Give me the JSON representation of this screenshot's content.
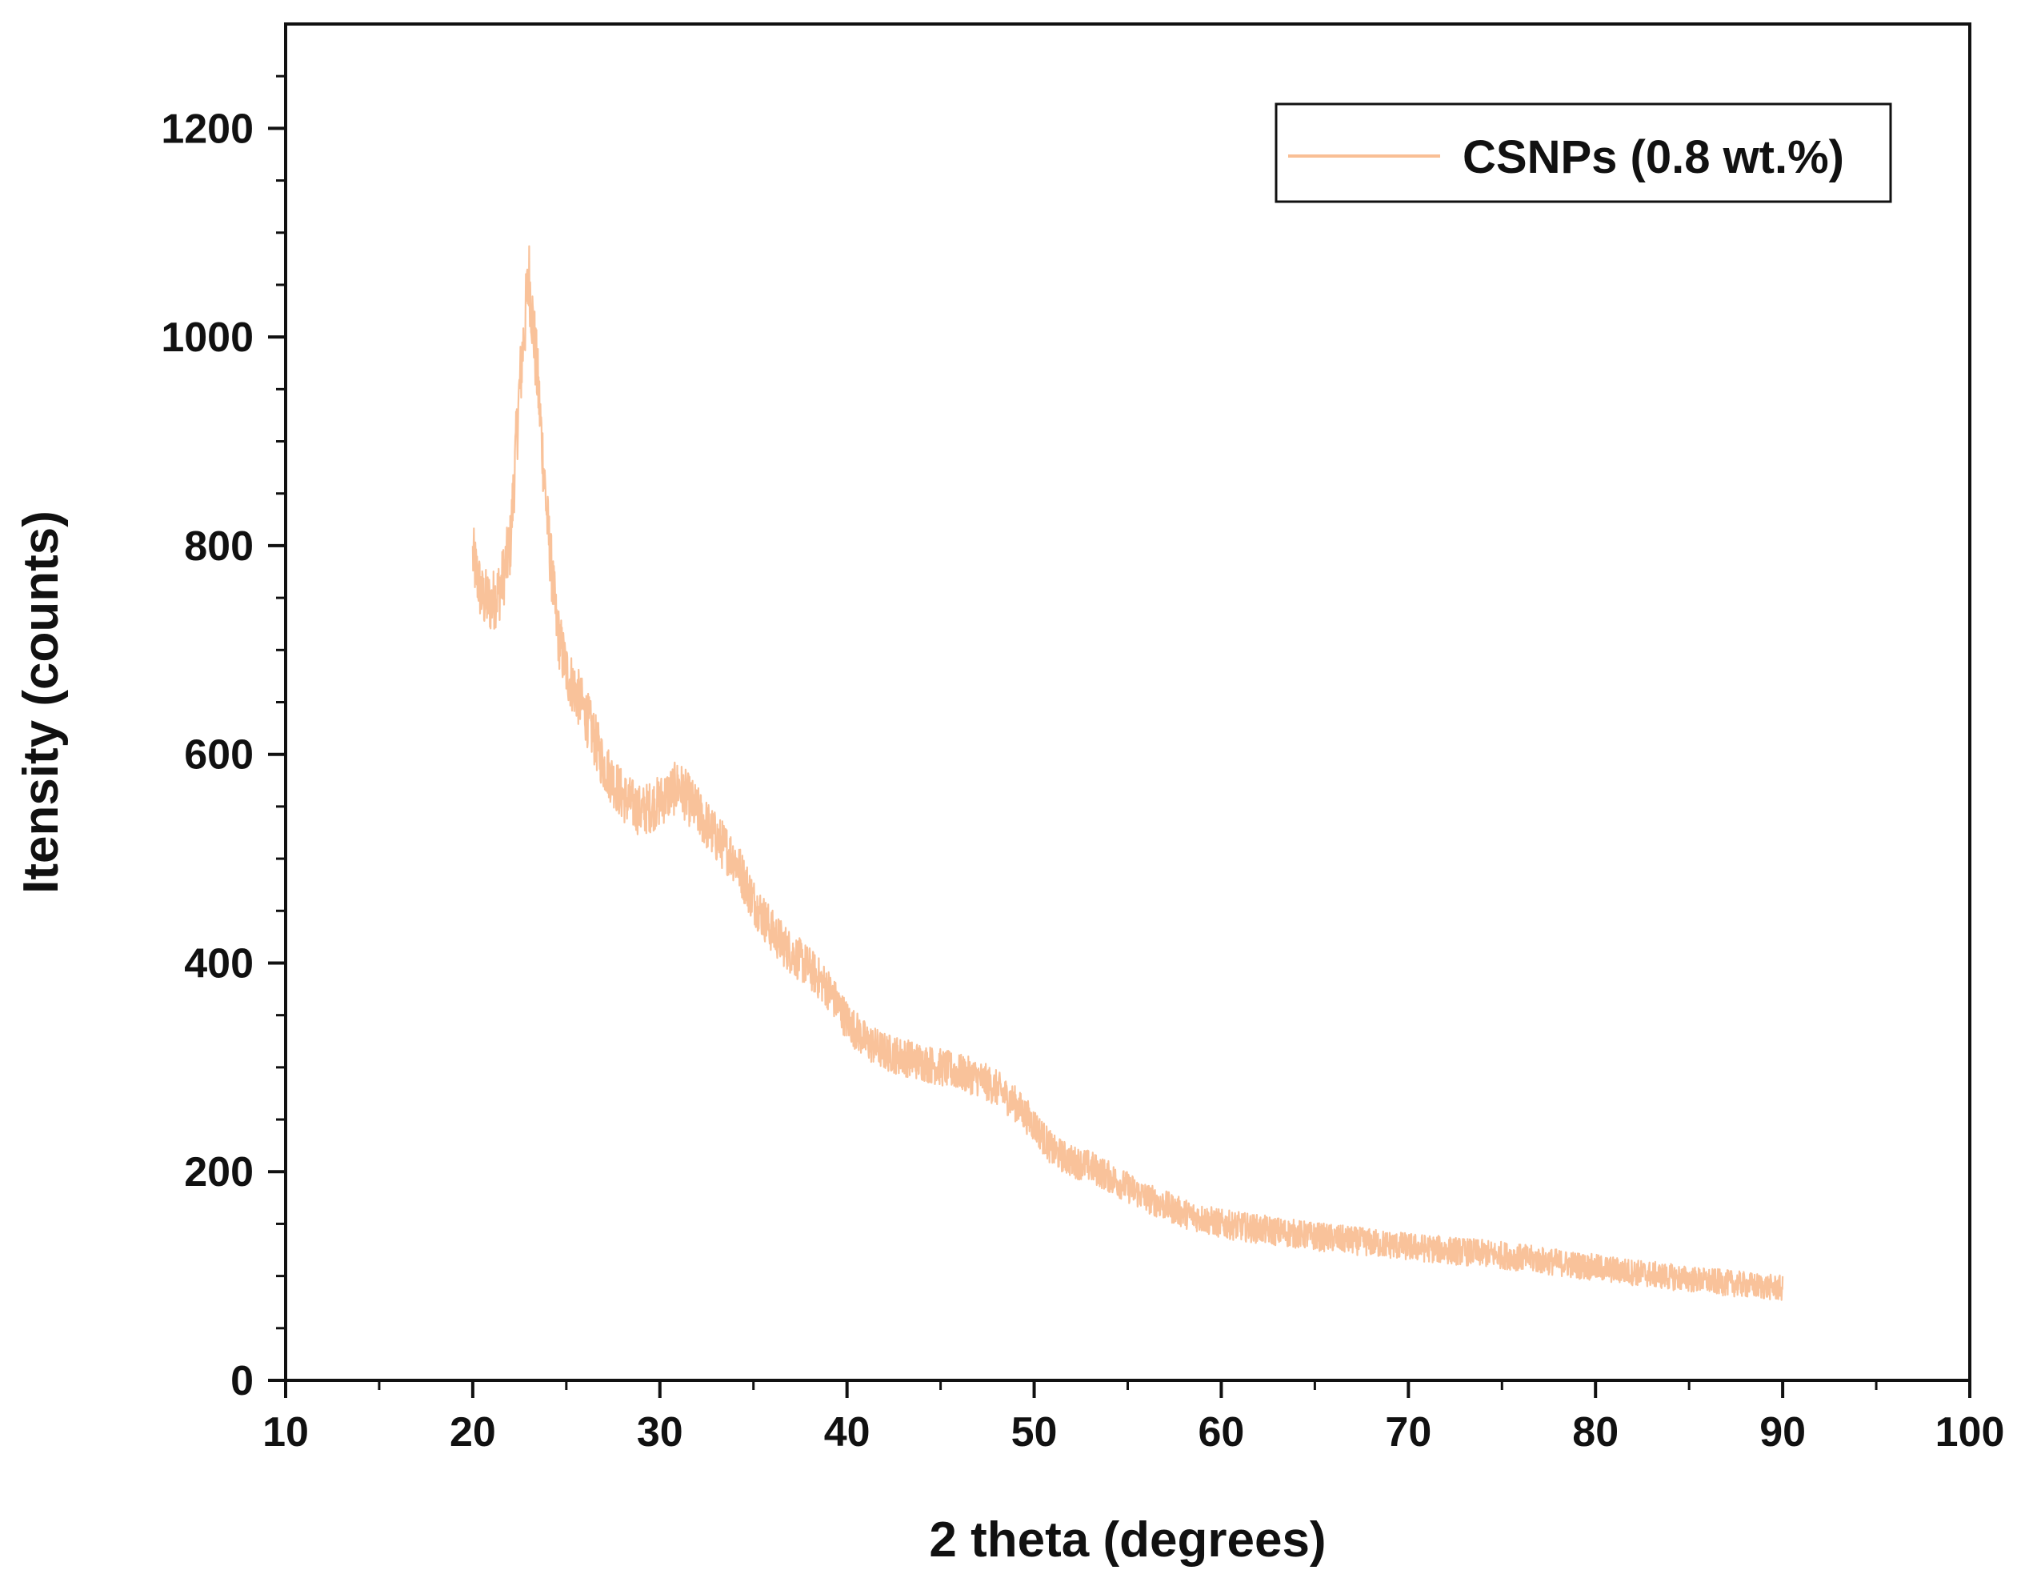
{
  "chart_data": {
    "type": "line",
    "title": "",
    "xlabel": "2 theta (degrees)",
    "ylabel": "Itensity (counts)",
    "xlim": [
      10,
      100
    ],
    "ylim": [
      0,
      1300
    ],
    "x_ticks": [
      10,
      20,
      30,
      40,
      50,
      60,
      70,
      80,
      90,
      100
    ],
    "x_tick_labels": [
      "10",
      "20",
      "30",
      "40",
      "50",
      "60",
      "70",
      "80",
      "90",
      "100"
    ],
    "y_ticks": [
      0,
      200,
      400,
      600,
      800,
      1000,
      1200
    ],
    "y_tick_labels": [
      "0",
      "200",
      "400",
      "600",
      "800",
      "1000",
      "1200"
    ],
    "grid": false,
    "legend": {
      "position": "top-right"
    },
    "series": [
      {
        "name": "CSNPs (0.8 wt.%)",
        "color": "#F9BF95",
        "x": [
          20,
          20.5,
          21,
          21.5,
          22,
          22.5,
          23,
          23.5,
          24,
          24.5,
          25,
          26,
          27,
          28,
          29,
          30,
          31,
          32,
          33,
          34,
          35,
          36,
          37,
          38,
          39,
          40,
          41,
          42,
          43,
          44,
          45,
          46,
          47,
          48,
          49,
          50,
          51,
          52,
          53,
          54,
          55,
          56,
          58,
          60,
          62,
          65,
          68,
          70,
          75,
          80,
          85,
          90
        ],
        "values": [
          790,
          750,
          745,
          760,
          800,
          950,
          1060,
          950,
          820,
          720,
          680,
          640,
          590,
          560,
          545,
          555,
          570,
          545,
          520,
          500,
          460,
          430,
          410,
          395,
          375,
          345,
          325,
          315,
          310,
          305,
          300,
          295,
          290,
          280,
          265,
          245,
          220,
          210,
          205,
          195,
          185,
          175,
          160,
          150,
          145,
          138,
          132,
          128,
          120,
          108,
          97,
          88
        ],
        "noise": 22
      }
    ]
  }
}
